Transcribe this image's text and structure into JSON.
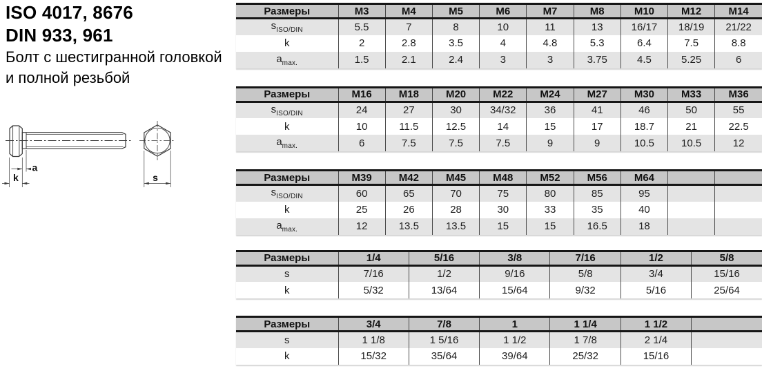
{
  "title": {
    "line1": "ISO 4017, 8676",
    "line2": "DIN 933, 961",
    "line3": "Болт с шестигранной головкой",
    "line4": "и полной резьбой"
  },
  "drawing": {
    "dim_a_label": "a",
    "dim_k_label": "k",
    "dim_s_label": "s"
  },
  "tables": [
    {
      "name": "metric-m3-m14",
      "header": [
        "Размеры",
        "M3",
        "M4",
        "M5",
        "M6",
        "M7",
        "M8",
        "M10",
        "M12",
        "M14"
      ],
      "rows": [
        {
          "label": "s",
          "sub": "ISO/DIN",
          "values": [
            "5.5",
            "7",
            "8",
            "10",
            "11",
            "13",
            "16/17",
            "18/19",
            "21/22"
          ]
        },
        {
          "label": "k",
          "sub": "",
          "values": [
            "2",
            "2.8",
            "3.5",
            "4",
            "4.8",
            "5.3",
            "6.4",
            "7.5",
            "8.8"
          ]
        },
        {
          "label": "a",
          "sub": "max.",
          "values": [
            "1.5",
            "2.1",
            "2.4",
            "3",
            "3",
            "3.75",
            "4.5",
            "5.25",
            "6"
          ]
        }
      ]
    },
    {
      "name": "metric-m16-m36",
      "header": [
        "Размеры",
        "M16",
        "M18",
        "M20",
        "M22",
        "M24",
        "M27",
        "M30",
        "M33",
        "M36"
      ],
      "rows": [
        {
          "label": "s",
          "sub": "ISO/DIN",
          "values": [
            "24",
            "27",
            "30",
            "34/32",
            "36",
            "41",
            "46",
            "50",
            "55"
          ]
        },
        {
          "label": "k",
          "sub": "",
          "values": [
            "10",
            "11.5",
            "12.5",
            "14",
            "15",
            "17",
            "18.7",
            "21",
            "22.5"
          ]
        },
        {
          "label": "a",
          "sub": "max.",
          "values": [
            "6",
            "7.5",
            "7.5",
            "7.5",
            "9",
            "9",
            "10.5",
            "10.5",
            "12"
          ]
        }
      ]
    },
    {
      "name": "metric-m39-m64",
      "header": [
        "Размеры",
        "M39",
        "M42",
        "M45",
        "M48",
        "M52",
        "M56",
        "M64",
        "",
        ""
      ],
      "rows": [
        {
          "label": "s",
          "sub": "ISO/DIN",
          "values": [
            "60",
            "65",
            "70",
            "75",
            "80",
            "85",
            "95",
            "",
            ""
          ]
        },
        {
          "label": "k",
          "sub": "",
          "values": [
            "25",
            "26",
            "28",
            "30",
            "33",
            "35",
            "40",
            "",
            ""
          ]
        },
        {
          "label": "a",
          "sub": "max.",
          "values": [
            "12",
            "13.5",
            "13.5",
            "15",
            "15",
            "16.5",
            "18",
            "",
            ""
          ]
        }
      ]
    },
    {
      "name": "imperial-1-4-to-5-8",
      "header": [
        "Размеры",
        "1/4",
        "5/16",
        "3/8",
        "7/16",
        "1/2",
        "5/8"
      ],
      "rows": [
        {
          "label": "s",
          "sub": "",
          "values": [
            "7/16",
            "1/2",
            "9/16",
            "5/8",
            "3/4",
            "15/16"
          ]
        },
        {
          "label": "k",
          "sub": "",
          "values": [
            "5/32",
            "13/64",
            "15/64",
            "9/32",
            "5/16",
            "25/64"
          ]
        }
      ]
    },
    {
      "name": "imperial-3-4-to-1-1-2",
      "header": [
        "Размеры",
        "3/4",
        "7/8",
        "1",
        "1 1/4",
        "1 1/2",
        ""
      ],
      "rows": [
        {
          "label": "s",
          "sub": "",
          "values": [
            "1 1/8",
            "1 5/16",
            "1 1/2",
            "1 7/8",
            "2 1/4",
            ""
          ]
        },
        {
          "label": "k",
          "sub": "",
          "values": [
            "15/32",
            "35/64",
            "39/64",
            "25/32",
            "15/16",
            ""
          ]
        }
      ]
    }
  ],
  "colors": {
    "header_bg": "#c7c7c7",
    "row_alt_bg": "#e4e4e4",
    "border_dark": "#161616",
    "grid_line": "#4a4a4a",
    "drawing_line": "#3a3a3a"
  }
}
